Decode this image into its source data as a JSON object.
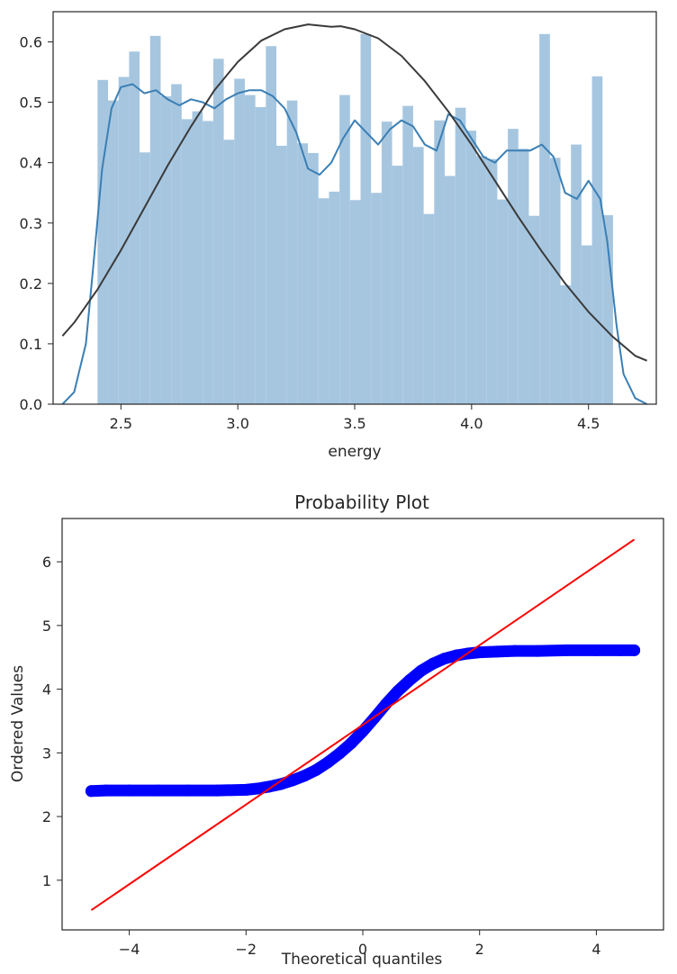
{
  "chart_data": [
    {
      "type": "bar",
      "subtype": "histogram-with-kde-and-normal-fit",
      "title": "",
      "xlabel": "energy",
      "ylabel": "",
      "xlim": [
        2.21,
        4.79
      ],
      "ylim": [
        0,
        0.65
      ],
      "x_ticks": [
        2.5,
        3.0,
        3.5,
        4.0,
        4.5
      ],
      "x_tick_labels": [
        "2.5",
        "3.0",
        "3.5",
        "4.0",
        "4.5"
      ],
      "y_ticks": [
        0.0,
        0.1,
        0.2,
        0.3,
        0.4,
        0.5,
        0.6
      ],
      "y_tick_labels": [
        "0.0",
        "0.1",
        "0.2",
        "0.3",
        "0.4",
        "0.5",
        "0.6"
      ],
      "grid": false,
      "bins": {
        "start": 2.4,
        "width": 0.045,
        "values": [
          0.537,
          0.503,
          0.542,
          0.584,
          0.417,
          0.61,
          0.51,
          0.53,
          0.472,
          0.485,
          0.469,
          0.572,
          0.438,
          0.539,
          0.512,
          0.492,
          0.593,
          0.428,
          0.503,
          0.432,
          0.416,
          0.341,
          0.352,
          0.512,
          0.338,
          0.613,
          0.35,
          0.468,
          0.395,
          0.494,
          0.426,
          0.315,
          0.47,
          0.378,
          0.491,
          0.453,
          0.411,
          0.406,
          0.339,
          0.456,
          0.423,
          0.312,
          0.613,
          0.408,
          0.197,
          0.43,
          0.263,
          0.543,
          0.313
        ]
      },
      "series": [
        {
          "type": "line",
          "x": [
            2.25,
            2.3,
            2.35,
            2.38,
            2.42,
            2.46,
            2.5,
            2.55,
            2.6,
            2.65,
            2.7,
            2.75,
            2.8,
            2.85,
            2.9,
            2.95,
            3.0,
            3.05,
            3.1,
            3.15,
            3.2,
            3.25,
            3.3,
            3.35,
            3.4,
            3.45,
            3.5,
            3.55,
            3.6,
            3.65,
            3.7,
            3.75,
            3.8,
            3.85,
            3.9,
            3.95,
            4.0,
            4.05,
            4.1,
            4.15,
            4.2,
            4.25,
            4.3,
            4.35,
            4.4,
            4.45,
            4.5,
            4.55,
            4.58,
            4.6,
            4.62,
            4.65,
            4.7,
            4.75
          ],
          "values": [
            0.0,
            0.02,
            0.1,
            0.22,
            0.39,
            0.49,
            0.525,
            0.53,
            0.515,
            0.52,
            0.505,
            0.495,
            0.505,
            0.5,
            0.49,
            0.505,
            0.515,
            0.52,
            0.52,
            0.51,
            0.49,
            0.45,
            0.39,
            0.38,
            0.4,
            0.44,
            0.47,
            0.45,
            0.43,
            0.455,
            0.47,
            0.46,
            0.43,
            0.42,
            0.48,
            0.47,
            0.44,
            0.41,
            0.4,
            0.42,
            0.42,
            0.42,
            0.43,
            0.41,
            0.35,
            0.34,
            0.37,
            0.34,
            0.27,
            0.2,
            0.13,
            0.05,
            0.01,
            0.0
          ]
        },
        {
          "type": "line",
          "x": [
            2.25,
            2.3,
            2.4,
            2.5,
            2.6,
            2.7,
            2.8,
            2.9,
            3.0,
            3.1,
            3.2,
            3.3,
            3.4,
            3.44,
            3.5,
            3.6,
            3.7,
            3.8,
            3.9,
            4.0,
            4.1,
            4.2,
            4.3,
            4.4,
            4.5,
            4.6,
            4.7,
            4.75
          ],
          "values": [
            0.113,
            0.135,
            0.19,
            0.255,
            0.325,
            0.395,
            0.46,
            0.52,
            0.567,
            0.602,
            0.621,
            0.629,
            0.625,
            0.626,
            0.621,
            0.606,
            0.577,
            0.535,
            0.485,
            0.43,
            0.37,
            0.31,
            0.253,
            0.2,
            0.153,
            0.113,
            0.08,
            0.072
          ]
        }
      ],
      "colors": {
        "bars": "#a6c6e0",
        "kde": "#3b7fb4",
        "normal_fit": "#3a3a3a",
        "axes": "#262626"
      }
    },
    {
      "type": "scatter",
      "title": "Probability Plot",
      "xlabel": "Theoretical quantiles",
      "ylabel": "Ordered Values",
      "xlim": [
        -5.15,
        5.15
      ],
      "ylim": [
        0.22,
        6.68
      ],
      "x_ticks": [
        -4,
        -2,
        0,
        2,
        4
      ],
      "x_tick_labels": [
        "−4",
        "−2",
        "0",
        "2",
        "4"
      ],
      "y_ticks": [
        1,
        2,
        3,
        4,
        5,
        6
      ],
      "y_tick_labels": [
        "1",
        "2",
        "3",
        "4",
        "5",
        "6"
      ],
      "grid": false,
      "series": [
        {
          "type": "scatter",
          "x": [
            -4.65,
            -4.4,
            -4.0,
            -3.5,
            -3.0,
            -2.5,
            -2.0,
            -1.8,
            -1.6,
            -1.4,
            -1.2,
            -1.0,
            -0.8,
            -0.6,
            -0.4,
            -0.2,
            0.0,
            0.2,
            0.4,
            0.6,
            0.8,
            1.0,
            1.2,
            1.4,
            1.6,
            1.8,
            2.0,
            2.3,
            2.6,
            3.0,
            3.5,
            4.0,
            4.4,
            4.65
          ],
          "values": [
            2.4,
            2.41,
            2.41,
            2.41,
            2.41,
            2.41,
            2.42,
            2.44,
            2.47,
            2.51,
            2.57,
            2.64,
            2.73,
            2.85,
            2.99,
            3.15,
            3.34,
            3.55,
            3.77,
            3.97,
            4.14,
            4.29,
            4.4,
            4.48,
            4.53,
            4.56,
            4.58,
            4.59,
            4.6,
            4.6,
            4.61,
            4.61,
            4.61,
            4.61
          ]
        },
        {
          "type": "line",
          "x": [
            -4.65,
            4.65
          ],
          "values": [
            0.53,
            6.35
          ]
        }
      ],
      "colors": {
        "points": "#0000ff",
        "fit_line": "#ff0000",
        "axes": "#262626"
      }
    }
  ]
}
